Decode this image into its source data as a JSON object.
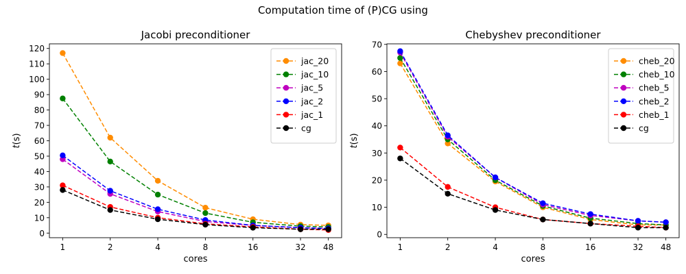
{
  "suptitle": "Computation time of (P)CG using",
  "chart_data": [
    {
      "type": "line",
      "title": "Jacobi preconditioner",
      "xlabel": "cores",
      "ylabel": "t(s)",
      "x": [
        1,
        2,
        4,
        8,
        16,
        32,
        48
      ],
      "xscale": "log",
      "xticks": [
        "1",
        "2",
        "4",
        "8",
        "16",
        "32",
        "48"
      ],
      "ylim": [
        -3,
        123
      ],
      "yticks": [
        0,
        10,
        20,
        30,
        40,
        50,
        60,
        70,
        80,
        90,
        100,
        110,
        120
      ],
      "grid": false,
      "legend_position": "top-right",
      "series": [
        {
          "name": "jac_20",
          "color": "#ff8c00",
          "values": [
            117,
            62,
            34,
            16.5,
            9,
            5.5,
            5
          ]
        },
        {
          "name": "jac_10",
          "color": "#008000",
          "values": [
            87.5,
            46.5,
            25,
            13,
            7,
            4.5,
            4
          ]
        },
        {
          "name": "jac_5",
          "color": "#bf00bf",
          "values": [
            48,
            25.5,
            14,
            7.5,
            5,
            3.5,
            3
          ]
        },
        {
          "name": "jac_2",
          "color": "#0000ff",
          "values": [
            50.5,
            27.5,
            15.5,
            8.5,
            5,
            3.5,
            3
          ]
        },
        {
          "name": "jac_1",
          "color": "#ff0000",
          "values": [
            31,
            17,
            10,
            6,
            4,
            2.5,
            2
          ]
        },
        {
          "name": "cg",
          "color": "#000000",
          "values": [
            28,
            15,
            9,
            5.5,
            3.5,
            2.5,
            2.5
          ]
        }
      ]
    },
    {
      "type": "line",
      "title": "Chebyshev preconditioner",
      "xlabel": "cores",
      "ylabel": "t(s)",
      "x": [
        1,
        2,
        4,
        8,
        16,
        32,
        48
      ],
      "xscale": "log",
      "xticks": [
        "1",
        "2",
        "4",
        "8",
        "16",
        "32",
        "48"
      ],
      "ylim": [
        -1.2,
        70.2
      ],
      "yticks": [
        0,
        10,
        20,
        30,
        40,
        50,
        60,
        70
      ],
      "grid": false,
      "legend_position": "top-right",
      "series": [
        {
          "name": "cheb_20",
          "color": "#ff8c00",
          "values": [
            63,
            33.5,
            19.5,
            10,
            5.5,
            3.5,
            3.5
          ]
        },
        {
          "name": "cheb_10",
          "color": "#008000",
          "values": [
            65,
            35,
            20,
            10.5,
            6,
            4,
            3.5
          ]
        },
        {
          "name": "cheb_5",
          "color": "#bf00bf",
          "values": [
            67,
            36,
            21,
            11,
            7,
            5,
            4.5
          ]
        },
        {
          "name": "cheb_2",
          "color": "#0000ff",
          "values": [
            67.5,
            36.5,
            21,
            11.5,
            7.5,
            5,
            4.5
          ]
        },
        {
          "name": "cheb_1",
          "color": "#ff0000",
          "values": [
            32,
            17.5,
            10,
            5.5,
            4,
            3,
            2.5
          ]
        },
        {
          "name": "cg",
          "color": "#000000",
          "values": [
            28,
            15,
            9,
            5.5,
            4,
            2.5,
            2.5
          ]
        }
      ]
    }
  ]
}
